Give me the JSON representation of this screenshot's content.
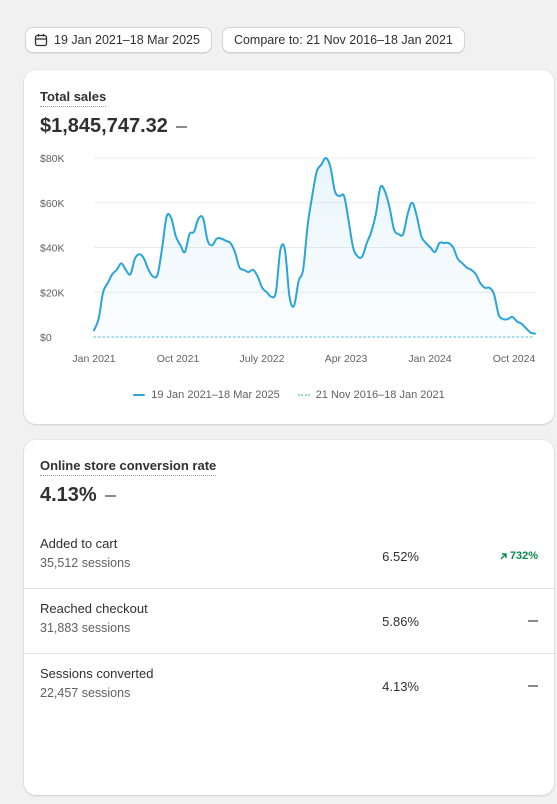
{
  "toolbar": {
    "date_range": "19 Jan 2021–18 Mar 2025",
    "compare": "Compare to: 21 Nov 2016–18 Jan 2021"
  },
  "sales_card": {
    "title": "Total sales",
    "value": "$1,845,747.32"
  },
  "chart_data": {
    "type": "area",
    "y_ticks": [
      "$0",
      "$20K",
      "$40K",
      "$60K",
      "$80K"
    ],
    "x_ticks": [
      "Jan 2021",
      "Oct 2021",
      "July 2022",
      "Apr 2023",
      "Jan 2024",
      "Oct 2024"
    ],
    "ylim": [
      0,
      80000
    ],
    "grid": true,
    "legend_position": "bottom",
    "series": [
      {
        "name": "19 Jan 2021–18 Mar 2025",
        "color": "#29a5d8",
        "style": "solid",
        "values": [
          3000,
          8000,
          20000,
          24000,
          28000,
          30000,
          33000,
          30000,
          28000,
          35000,
          37000,
          35000,
          30000,
          27000,
          28000,
          40000,
          54000,
          53000,
          45000,
          41000,
          38000,
          46000,
          47000,
          53000,
          53000,
          43000,
          41000,
          44000,
          44000,
          43000,
          42000,
          38000,
          31000,
          30000,
          29000,
          30000,
          27000,
          22000,
          20000,
          18000,
          20000,
          39000,
          39000,
          18000,
          14000,
          25000,
          30000,
          50000,
          63000,
          74000,
          77000,
          80000,
          76000,
          65000,
          63000,
          63000,
          52000,
          40000,
          36000,
          36000,
          42000,
          47000,
          55000,
          67000,
          65000,
          58000,
          48000,
          46000,
          46000,
          55000,
          60000,
          54000,
          45000,
          42000,
          40000,
          38000,
          42000,
          42000,
          42000,
          40000,
          35000,
          33000,
          31000,
          30000,
          28000,
          24000,
          22000,
          22000,
          19000,
          10000,
          8000,
          8000,
          9000,
          7000,
          6000,
          4000,
          2000,
          1500
        ]
      },
      {
        "name": "21 Nov 2016–18 Jan 2021",
        "color": "#8fd0ea",
        "style": "dotted",
        "values": [
          0,
          0
        ]
      }
    ]
  },
  "conversion_card": {
    "title": "Online store conversion rate",
    "value": "4.13%",
    "rows": [
      {
        "label": "Added to cart",
        "sessions": "35,512 sessions",
        "pct": "6.52%",
        "change": "732%"
      },
      {
        "label": "Reached checkout",
        "sessions": "31,883 sessions",
        "pct": "5.86%",
        "change": ""
      },
      {
        "label": "Sessions converted",
        "sessions": "22,457 sessions",
        "pct": "4.13%",
        "change": ""
      }
    ]
  }
}
